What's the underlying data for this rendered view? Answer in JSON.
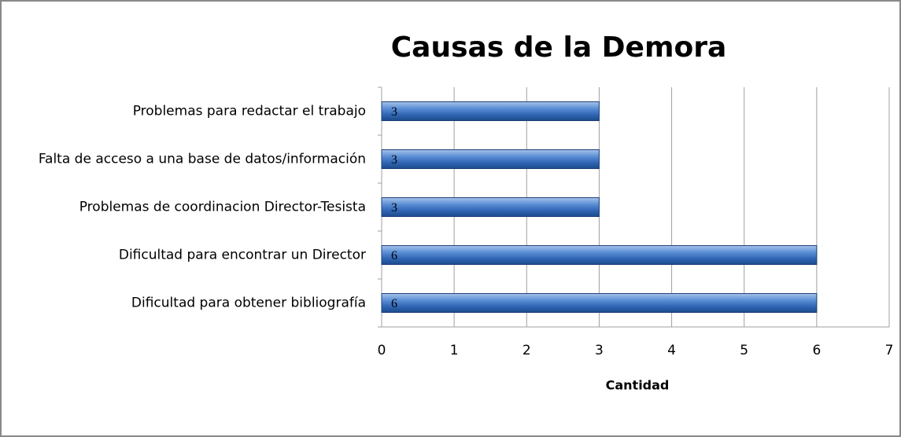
{
  "chart_data": {
    "type": "bar",
    "orientation": "horizontal",
    "title": "Causas de la Demora",
    "x_label": "Cantidad",
    "categories": [
      "Problemas para redactar el trabajo",
      "Falta de acceso a una base de datos/información",
      "Problemas de coordinacion Director-Tesista",
      "Dificultad para encontrar un Director",
      "Dificultad para obtener bibliografía"
    ],
    "values": [
      3,
      3,
      3,
      6,
      6
    ],
    "color": "#3a6fbf",
    "xlim": [
      0,
      7
    ],
    "xticks": [
      0,
      1,
      2,
      3,
      4,
      5,
      6,
      7
    ],
    "grid": true
  }
}
